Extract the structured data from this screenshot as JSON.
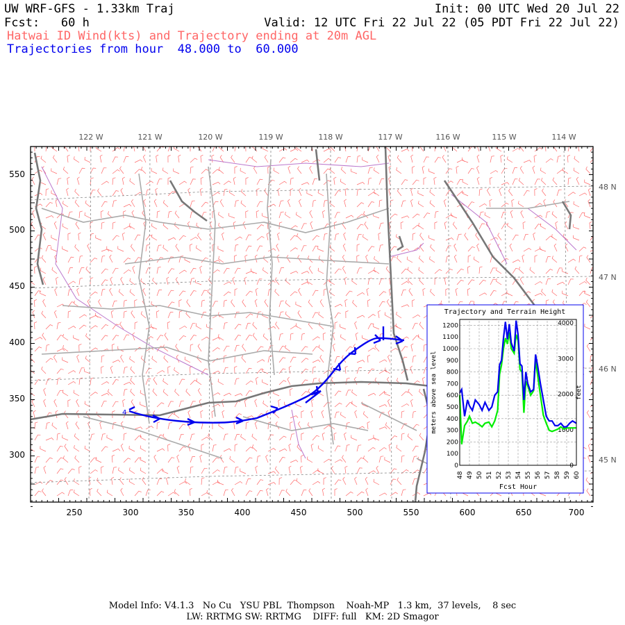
{
  "header": {
    "title": "UW WRF-GFS - 1.33km Traj",
    "init": "Init: 00 UTC Wed 20 Jul 22",
    "fcst": "Fcst:   60 h",
    "valid": "Valid: 12 UTC Fri 22 Jul 22 (05 PDT Fri 22 Jul 22)",
    "product": "Hatwai ID Wind(kts) and Trajectory ending at 20m AGL",
    "traj_hours": "Trajectories from hour  48.000 to  60.000"
  },
  "map": {
    "lon_labels": [
      "122 W",
      "121 W",
      "120 W",
      "119 W",
      "118 W",
      "117 W",
      "116 W",
      "115 W",
      "114 W"
    ],
    "lat_labels": [
      "48 N",
      "47 N",
      "46 N",
      "45 N"
    ],
    "x_ticks": [
      "250",
      "300",
      "350",
      "400",
      "450",
      "500",
      "550",
      "600",
      "650",
      "700"
    ],
    "y_ticks": [
      "550",
      "500",
      "450",
      "400",
      "350",
      "300"
    ],
    "traj_start_label": "4",
    "colors": {
      "wind_barbs": "#ff6666",
      "trajectory": "#0000ee",
      "borders": "#888888",
      "rivers": "#bb77cc"
    }
  },
  "inset": {
    "title": "Trajectory and Terrain Height",
    "ylabel_left": "meters above sea level",
    "ylabel_right": "feet",
    "xlabel": "Fcst Hour",
    "y_ticks": [
      "0",
      "100",
      "200",
      "300",
      "400",
      "500",
      "600",
      "700",
      "800",
      "900",
      "1000",
      "1100",
      "1200"
    ],
    "y_ticks_right": [
      "0",
      "1000",
      "2000",
      "3000",
      "4000"
    ],
    "x_ticks": [
      "48",
      "49",
      "50",
      "51",
      "52",
      "53",
      "54",
      "55",
      "56",
      "57",
      "58",
      "59",
      "60"
    ]
  },
  "chart_data": {
    "type": "line",
    "title": "Trajectory and Terrain Height",
    "xlabel": "Fcst Hour",
    "ylabel": "meters above sea level",
    "xlim": [
      48,
      60
    ],
    "ylim": [
      0,
      1250
    ],
    "x": [
      48,
      48.2,
      48.5,
      48.8,
      49,
      49.3,
      49.6,
      50,
      50.3,
      50.6,
      51,
      51.3,
      51.6,
      51.9,
      52.1,
      52.3,
      52.5,
      52.7,
      52.9,
      53.1,
      53.3,
      53.6,
      53.8,
      54,
      54.2,
      54.4,
      54.6,
      54.8,
      55,
      55.3,
      55.6,
      55.8,
      56,
      56.3,
      56.6,
      56.9,
      57.2,
      57.5,
      57.8,
      58.1,
      58.4,
      58.7,
      59,
      59.3,
      59.6,
      60
    ],
    "series": [
      {
        "color": "#0000ee",
        "values": [
          620,
          650,
          420,
          560,
          510,
          470,
          560,
          520,
          470,
          540,
          470,
          500,
          600,
          630,
          860,
          900,
          1090,
          1230,
          1080,
          1210,
          1050,
          980,
          1240,
          1120,
          870,
          850,
          560,
          800,
          700,
          630,
          650,
          950,
          860,
          700,
          560,
          420,
          380,
          380,
          340,
          340,
          360,
          330,
          330,
          360,
          380,
          360
        ]
      },
      {
        "color": "#00ee00",
        "values": [
          600,
          180,
          340,
          380,
          420,
          360,
          370,
          350,
          330,
          360,
          370,
          330,
          380,
          470,
          780,
          860,
          1000,
          1090,
          1040,
          1140,
          1000,
          960,
          1120,
          1070,
          820,
          800,
          450,
          720,
          680,
          600,
          640,
          900,
          780,
          600,
          430,
          360,
          300,
          290,
          300,
          310,
          330,
          310,
          320,
          320,
          320,
          320
        ]
      }
    ]
  },
  "footer": {
    "line1": "Model Info: V4.1.3   No Cu   YSU PBL  Thompson    Noah-MP   1.3 km,  37 levels,    8 sec",
    "line2": "LW: RRTMG SW: RRTMG    DIFF: full   KM: 2D Smagor"
  }
}
